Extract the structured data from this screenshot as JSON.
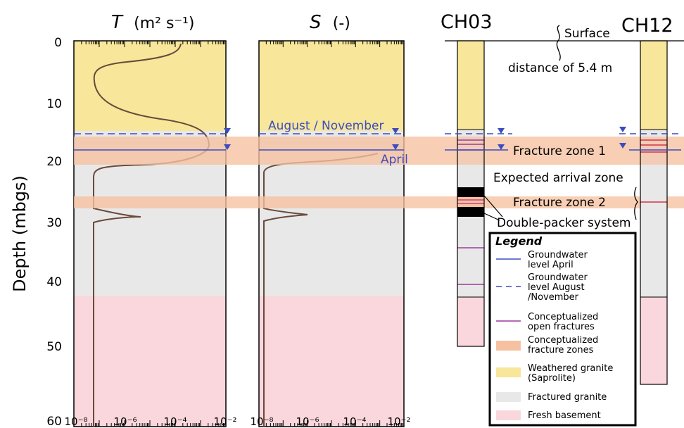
{
  "colors": {
    "weathered": "#f8e69a",
    "fractured": "#e8e8e8",
    "fresh": "#f9d7dc",
    "fracture_zone": "#f6c1a0",
    "gw_line": "#3b4cc0",
    "fracture_line": "#9b3a9b",
    "fracture_line_ch12": "#d4344a",
    "curve": "#6a4a3a",
    "packer": "#000000"
  },
  "panels": {
    "T": {
      "title_italic": "T",
      "title_unit": "(m² s⁻¹)"
    },
    "S": {
      "title_italic": "S",
      "title_unit": "(-)"
    }
  },
  "y_axis": {
    "label": "Depth (mbgs)",
    "ticks": [
      "0",
      "10",
      "20",
      "30",
      "40",
      "50",
      "60"
    ]
  },
  "x_axis": {
    "ticks": [
      "10⁻⁸",
      "10⁻⁶",
      "10⁻⁴",
      "10⁻²"
    ]
  },
  "annotations": {
    "august_november": "August / November",
    "april": "April",
    "surface": "Surface",
    "distance": "distance of 5.4 m",
    "fracture_zone_1": "Fracture zone 1",
    "fracture_zone_2": "Fracture zone 2",
    "expected_arrival": "Expected arrival zone",
    "double_packer": "Double-packer system"
  },
  "boreholes": {
    "ch03": "CH03",
    "ch12": "CH12"
  },
  "legend": {
    "title": "Legend",
    "items": [
      {
        "text": "Groundwater level April",
        "kind": "solid-line"
      },
      {
        "text": "Groundwater level August /November",
        "kind": "dashed-line"
      },
      {
        "text": "Conceptualized open fractures",
        "kind": "purple-line"
      },
      {
        "text": "Conceptualized fracture zones",
        "kind": "orange-patch"
      },
      {
        "text": "Weathered granite (Saprolite)",
        "kind": "yellow-patch"
      },
      {
        "text": "Fractured granite",
        "kind": "gray-patch"
      },
      {
        "text": "Fresh basement",
        "kind": "pink-patch"
      }
    ]
  }
}
